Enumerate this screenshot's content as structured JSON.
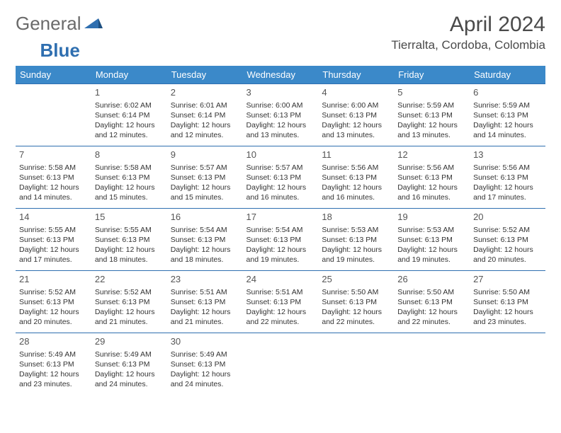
{
  "logo": {
    "text_general": "General",
    "text_blue": "Blue"
  },
  "header": {
    "month_title": "April 2024",
    "location": "Tierralta, Cordoba, Colombia"
  },
  "colors": {
    "header_bg": "#3b89c9",
    "header_text": "#ffffff",
    "border": "#2f6fb0",
    "text": "#333333",
    "logo_blue": "#2f6fb0"
  },
  "days": [
    "Sunday",
    "Monday",
    "Tuesday",
    "Wednesday",
    "Thursday",
    "Friday",
    "Saturday"
  ],
  "weeks": [
    [
      null,
      {
        "n": "1",
        "sr": "Sunrise: 6:02 AM",
        "ss": "Sunset: 6:14 PM",
        "d1": "Daylight: 12 hours",
        "d2": "and 12 minutes."
      },
      {
        "n": "2",
        "sr": "Sunrise: 6:01 AM",
        "ss": "Sunset: 6:14 PM",
        "d1": "Daylight: 12 hours",
        "d2": "and 12 minutes."
      },
      {
        "n": "3",
        "sr": "Sunrise: 6:00 AM",
        "ss": "Sunset: 6:13 PM",
        "d1": "Daylight: 12 hours",
        "d2": "and 13 minutes."
      },
      {
        "n": "4",
        "sr": "Sunrise: 6:00 AM",
        "ss": "Sunset: 6:13 PM",
        "d1": "Daylight: 12 hours",
        "d2": "and 13 minutes."
      },
      {
        "n": "5",
        "sr": "Sunrise: 5:59 AM",
        "ss": "Sunset: 6:13 PM",
        "d1": "Daylight: 12 hours",
        "d2": "and 13 minutes."
      },
      {
        "n": "6",
        "sr": "Sunrise: 5:59 AM",
        "ss": "Sunset: 6:13 PM",
        "d1": "Daylight: 12 hours",
        "d2": "and 14 minutes."
      }
    ],
    [
      {
        "n": "7",
        "sr": "Sunrise: 5:58 AM",
        "ss": "Sunset: 6:13 PM",
        "d1": "Daylight: 12 hours",
        "d2": "and 14 minutes."
      },
      {
        "n": "8",
        "sr": "Sunrise: 5:58 AM",
        "ss": "Sunset: 6:13 PM",
        "d1": "Daylight: 12 hours",
        "d2": "and 15 minutes."
      },
      {
        "n": "9",
        "sr": "Sunrise: 5:57 AM",
        "ss": "Sunset: 6:13 PM",
        "d1": "Daylight: 12 hours",
        "d2": "and 15 minutes."
      },
      {
        "n": "10",
        "sr": "Sunrise: 5:57 AM",
        "ss": "Sunset: 6:13 PM",
        "d1": "Daylight: 12 hours",
        "d2": "and 16 minutes."
      },
      {
        "n": "11",
        "sr": "Sunrise: 5:56 AM",
        "ss": "Sunset: 6:13 PM",
        "d1": "Daylight: 12 hours",
        "d2": "and 16 minutes."
      },
      {
        "n": "12",
        "sr": "Sunrise: 5:56 AM",
        "ss": "Sunset: 6:13 PM",
        "d1": "Daylight: 12 hours",
        "d2": "and 16 minutes."
      },
      {
        "n": "13",
        "sr": "Sunrise: 5:56 AM",
        "ss": "Sunset: 6:13 PM",
        "d1": "Daylight: 12 hours",
        "d2": "and 17 minutes."
      }
    ],
    [
      {
        "n": "14",
        "sr": "Sunrise: 5:55 AM",
        "ss": "Sunset: 6:13 PM",
        "d1": "Daylight: 12 hours",
        "d2": "and 17 minutes."
      },
      {
        "n": "15",
        "sr": "Sunrise: 5:55 AM",
        "ss": "Sunset: 6:13 PM",
        "d1": "Daylight: 12 hours",
        "d2": "and 18 minutes."
      },
      {
        "n": "16",
        "sr": "Sunrise: 5:54 AM",
        "ss": "Sunset: 6:13 PM",
        "d1": "Daylight: 12 hours",
        "d2": "and 18 minutes."
      },
      {
        "n": "17",
        "sr": "Sunrise: 5:54 AM",
        "ss": "Sunset: 6:13 PM",
        "d1": "Daylight: 12 hours",
        "d2": "and 19 minutes."
      },
      {
        "n": "18",
        "sr": "Sunrise: 5:53 AM",
        "ss": "Sunset: 6:13 PM",
        "d1": "Daylight: 12 hours",
        "d2": "and 19 minutes."
      },
      {
        "n": "19",
        "sr": "Sunrise: 5:53 AM",
        "ss": "Sunset: 6:13 PM",
        "d1": "Daylight: 12 hours",
        "d2": "and 19 minutes."
      },
      {
        "n": "20",
        "sr": "Sunrise: 5:52 AM",
        "ss": "Sunset: 6:13 PM",
        "d1": "Daylight: 12 hours",
        "d2": "and 20 minutes."
      }
    ],
    [
      {
        "n": "21",
        "sr": "Sunrise: 5:52 AM",
        "ss": "Sunset: 6:13 PM",
        "d1": "Daylight: 12 hours",
        "d2": "and 20 minutes."
      },
      {
        "n": "22",
        "sr": "Sunrise: 5:52 AM",
        "ss": "Sunset: 6:13 PM",
        "d1": "Daylight: 12 hours",
        "d2": "and 21 minutes."
      },
      {
        "n": "23",
        "sr": "Sunrise: 5:51 AM",
        "ss": "Sunset: 6:13 PM",
        "d1": "Daylight: 12 hours",
        "d2": "and 21 minutes."
      },
      {
        "n": "24",
        "sr": "Sunrise: 5:51 AM",
        "ss": "Sunset: 6:13 PM",
        "d1": "Daylight: 12 hours",
        "d2": "and 22 minutes."
      },
      {
        "n": "25",
        "sr": "Sunrise: 5:50 AM",
        "ss": "Sunset: 6:13 PM",
        "d1": "Daylight: 12 hours",
        "d2": "and 22 minutes."
      },
      {
        "n": "26",
        "sr": "Sunrise: 5:50 AM",
        "ss": "Sunset: 6:13 PM",
        "d1": "Daylight: 12 hours",
        "d2": "and 22 minutes."
      },
      {
        "n": "27",
        "sr": "Sunrise: 5:50 AM",
        "ss": "Sunset: 6:13 PM",
        "d1": "Daylight: 12 hours",
        "d2": "and 23 minutes."
      }
    ],
    [
      {
        "n": "28",
        "sr": "Sunrise: 5:49 AM",
        "ss": "Sunset: 6:13 PM",
        "d1": "Daylight: 12 hours",
        "d2": "and 23 minutes."
      },
      {
        "n": "29",
        "sr": "Sunrise: 5:49 AM",
        "ss": "Sunset: 6:13 PM",
        "d1": "Daylight: 12 hours",
        "d2": "and 24 minutes."
      },
      {
        "n": "30",
        "sr": "Sunrise: 5:49 AM",
        "ss": "Sunset: 6:13 PM",
        "d1": "Daylight: 12 hours",
        "d2": "and 24 minutes."
      },
      null,
      null,
      null,
      null
    ]
  ]
}
